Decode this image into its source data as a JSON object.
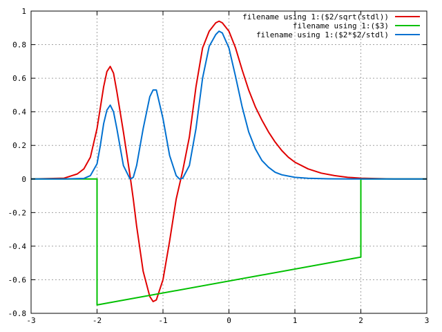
{
  "chart_data": {
    "type": "line",
    "title": "",
    "xlabel": "",
    "ylabel": "",
    "xlim": [
      -3,
      3
    ],
    "ylim": [
      -0.8,
      1
    ],
    "grid": true,
    "legend_position": "top-right",
    "x_ticks": [
      {
        "value": -3,
        "label": "-3"
      },
      {
        "value": -2,
        "label": "-2"
      },
      {
        "value": -1,
        "label": "-1"
      },
      {
        "value": 0,
        "label": "0"
      },
      {
        "value": 1,
        "label": "1"
      },
      {
        "value": 2,
        "label": "2"
      },
      {
        "value": 3,
        "label": "3"
      }
    ],
    "y_ticks": [
      {
        "value": -0.8,
        "label": "-0.8"
      },
      {
        "value": -0.6,
        "label": "-0.6"
      },
      {
        "value": -0.4,
        "label": "-0.4"
      },
      {
        "value": -0.2,
        "label": "-0.2"
      },
      {
        "value": 0,
        "label": "0"
      },
      {
        "value": 0.2,
        "label": "0.2"
      },
      {
        "value": 0.4,
        "label": "0.4"
      },
      {
        "value": 0.6,
        "label": "0.6"
      },
      {
        "value": 0.8,
        "label": "0.8"
      },
      {
        "value": 1,
        "label": "1"
      }
    ],
    "series": [
      {
        "name": "filename using 1:($2/sqrt(stdl))",
        "color": "#e00000",
        "x": [
          -3,
          -2.5,
          -2.3,
          -2.2,
          -2.1,
          -2.0,
          -1.9,
          -1.85,
          -1.8,
          -1.75,
          -1.7,
          -1.6,
          -1.5,
          -1.45,
          -1.4,
          -1.3,
          -1.2,
          -1.15,
          -1.1,
          -1.0,
          -0.9,
          -0.8,
          -0.7,
          -0.6,
          -0.5,
          -0.4,
          -0.3,
          -0.2,
          -0.15,
          -0.1,
          0.0,
          0.1,
          0.2,
          0.3,
          0.4,
          0.5,
          0.6,
          0.7,
          0.8,
          0.9,
          1.0,
          1.2,
          1.4,
          1.6,
          1.8,
          2.0,
          2.5,
          3.0
        ],
        "y": [
          0,
          0.005,
          0.03,
          0.06,
          0.13,
          0.3,
          0.55,
          0.64,
          0.67,
          0.63,
          0.52,
          0.28,
          0.02,
          -0.12,
          -0.28,
          -0.55,
          -0.7,
          -0.73,
          -0.72,
          -0.6,
          -0.37,
          -0.12,
          0.05,
          0.25,
          0.55,
          0.78,
          0.88,
          0.93,
          0.94,
          0.93,
          0.88,
          0.78,
          0.65,
          0.53,
          0.43,
          0.35,
          0.28,
          0.22,
          0.17,
          0.13,
          0.1,
          0.06,
          0.035,
          0.02,
          0.01,
          0.005,
          0,
          0
        ]
      },
      {
        "name": "filename using 1:($3)",
        "color": "#00c000",
        "x": [
          -3,
          -2.0,
          -2.0,
          2.0,
          2.0,
          3.0
        ],
        "y": [
          0,
          0,
          -0.75,
          -0.465,
          0,
          0
        ]
      },
      {
        "name": "filename using 1:($2*$2/stdl)",
        "color": "#0070d0",
        "x": [
          -3,
          -2.5,
          -2.2,
          -2.1,
          -2.0,
          -1.95,
          -1.9,
          -1.85,
          -1.8,
          -1.75,
          -1.7,
          -1.6,
          -1.5,
          -1.45,
          -1.4,
          -1.3,
          -1.2,
          -1.15,
          -1.1,
          -1.0,
          -0.9,
          -0.8,
          -0.75,
          -0.7,
          -0.6,
          -0.5,
          -0.4,
          -0.3,
          -0.2,
          -0.15,
          -0.1,
          0.0,
          0.1,
          0.2,
          0.3,
          0.4,
          0.5,
          0.6,
          0.7,
          0.8,
          1.0,
          1.2,
          1.5,
          2.0,
          3.0
        ],
        "y": [
          0,
          0,
          0.003,
          0.02,
          0.09,
          0.2,
          0.33,
          0.41,
          0.44,
          0.4,
          0.3,
          0.08,
          0.0,
          0.01,
          0.08,
          0.3,
          0.49,
          0.53,
          0.53,
          0.36,
          0.14,
          0.02,
          0.0,
          0.005,
          0.08,
          0.3,
          0.6,
          0.79,
          0.86,
          0.88,
          0.87,
          0.78,
          0.61,
          0.43,
          0.28,
          0.18,
          0.11,
          0.07,
          0.04,
          0.025,
          0.01,
          0.004,
          0.001,
          0,
          0
        ]
      }
    ]
  }
}
